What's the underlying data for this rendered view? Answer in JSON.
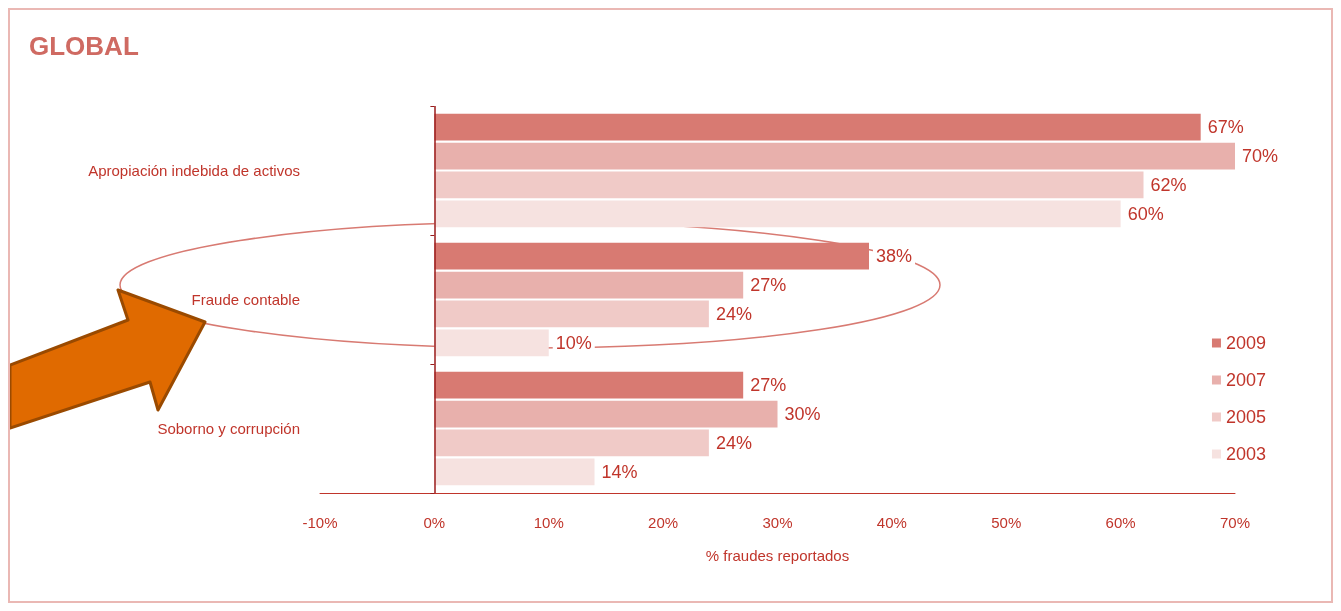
{
  "chart_data": {
    "type": "bar",
    "orientation": "horizontal",
    "title": "GLOBAL",
    "xlabel": "% fraudes reportados",
    "categories": [
      "Apropiación indebida de activos",
      "Fraude contable",
      "Soborno y corrupción"
    ],
    "series": [
      {
        "name": "2009",
        "color": "#d87a72",
        "values": [
          67,
          38,
          27
        ],
        "value_labels": [
          "67%",
          "38%",
          "27%"
        ]
      },
      {
        "name": "2007",
        "color": "#e8b0ac",
        "values": [
          70,
          27,
          30
        ],
        "value_labels": [
          "70%",
          "27%",
          "30%"
        ]
      },
      {
        "name": "2005",
        "color": "#f0cac7",
        "values": [
          62,
          24,
          24
        ],
        "value_labels": [
          "62%",
          "24%",
          "24%"
        ]
      },
      {
        "name": "2003",
        "color": "#f6e2e0",
        "values": [
          60,
          10,
          14
        ],
        "value_labels": [
          "60%",
          "10%",
          "14%"
        ]
      }
    ],
    "xlim": [
      -10,
      70
    ],
    "xticks": [
      {
        "value": -10,
        "label": "-10%"
      },
      {
        "value": 0,
        "label": "0%"
      },
      {
        "value": 10,
        "label": "10%"
      },
      {
        "value": 20,
        "label": "20%"
      },
      {
        "value": 30,
        "label": "30%"
      },
      {
        "value": 40,
        "label": "40%"
      },
      {
        "value": 50,
        "label": "50%"
      },
      {
        "value": 60,
        "label": "60%"
      },
      {
        "value": 70,
        "label": "70%"
      }
    ],
    "ref_lines": [
      {
        "axis": "x",
        "value": 0,
        "color": "#9a1c1c"
      }
    ],
    "grid": false,
    "legend": "bottom right"
  }
}
